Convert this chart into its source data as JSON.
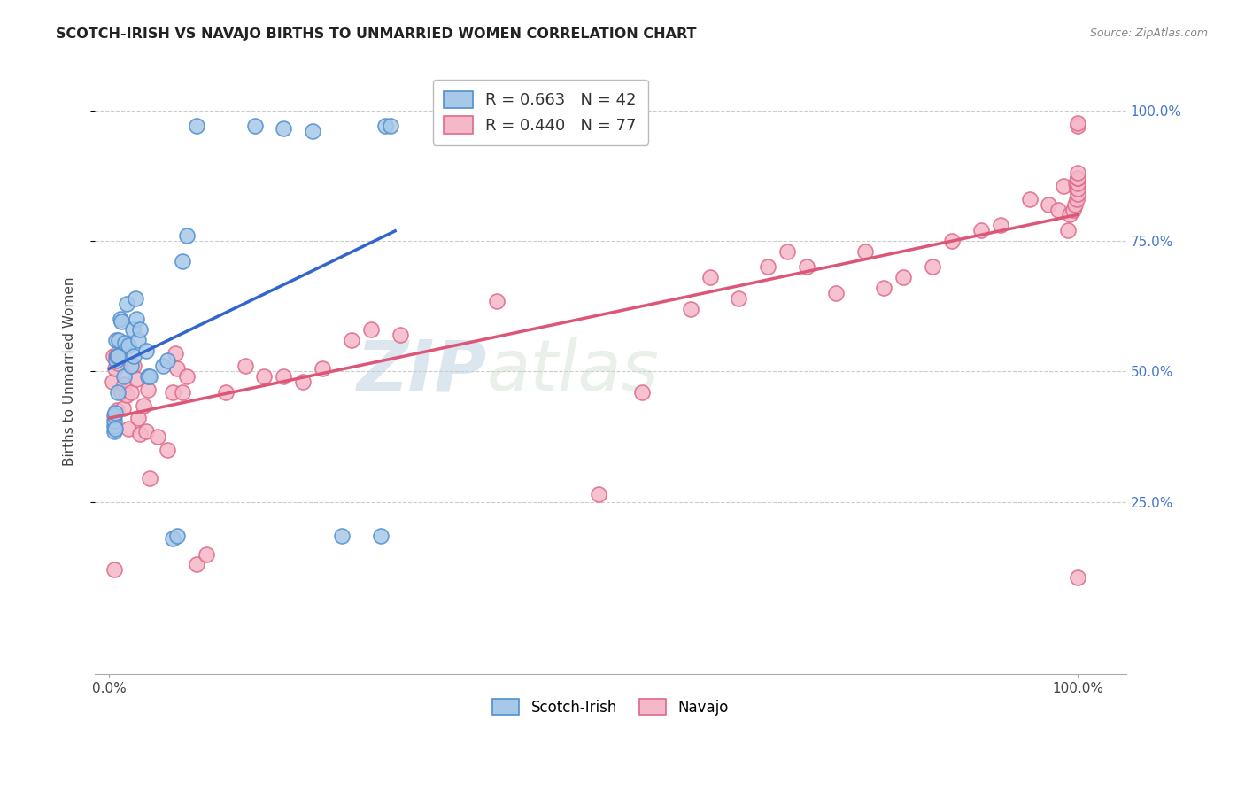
{
  "title": "SCOTCH-IRISH VS NAVAJO BIRTHS TO UNMARRIED WOMEN CORRELATION CHART",
  "source": "Source: ZipAtlas.com",
  "ylabel": "Births to Unmarried Women",
  "scotch_irish_R": 0.663,
  "scotch_irish_N": 42,
  "navajo_R": 0.44,
  "navajo_N": 77,
  "scotch_irish_color": "#a8c8e8",
  "navajo_color": "#f5b8c8",
  "scotch_irish_edge_color": "#5090d0",
  "navajo_edge_color": "#e06888",
  "scotch_irish_line_color": "#3366cc",
  "navajo_line_color": "#dd5577",
  "watermark_zip": "ZIP",
  "watermark_atlas": "atlas",
  "scotch_irish_x": [
    0.5,
    0.5,
    0.5,
    0.5,
    0.6,
    0.6,
    0.7,
    0.7,
    0.8,
    0.9,
    0.9,
    1.0,
    1.1,
    1.2,
    1.5,
    1.6,
    1.8,
    2.0,
    2.2,
    2.4,
    2.5,
    2.7,
    2.8,
    3.0,
    3.2,
    3.8,
    4.0,
    4.2,
    5.5,
    6.0,
    6.5,
    7.0,
    7.5,
    8.0,
    9.0,
    15.0,
    18.0,
    21.0,
    24.0,
    28.0,
    28.5,
    29.0
  ],
  "scotch_irish_y": [
    38.5,
    39.5,
    40.5,
    41.5,
    39.0,
    42.0,
    52.0,
    56.0,
    53.0,
    46.0,
    53.0,
    56.0,
    60.0,
    59.5,
    49.0,
    55.5,
    63.0,
    55.0,
    51.0,
    58.0,
    53.0,
    64.0,
    60.0,
    56.0,
    58.0,
    54.0,
    49.0,
    49.0,
    51.0,
    52.0,
    18.0,
    18.5,
    71.0,
    76.0,
    97.0,
    97.0,
    96.5,
    96.0,
    18.5,
    18.5,
    97.0,
    97.0
  ],
  "navajo_x": [
    0.3,
    0.4,
    0.5,
    0.6,
    0.7,
    0.8,
    0.9,
    1.0,
    1.2,
    1.4,
    1.5,
    1.8,
    2.0,
    2.2,
    2.5,
    2.8,
    3.0,
    3.2,
    3.5,
    3.8,
    4.0,
    4.2,
    5.0,
    6.0,
    6.5,
    6.8,
    7.0,
    7.5,
    8.0,
    9.0,
    10.0,
    12.0,
    14.0,
    16.0,
    18.0,
    20.0,
    22.0,
    25.0,
    27.0,
    30.0,
    40.0,
    50.5,
    55.0,
    60.0,
    62.0,
    65.0,
    68.0,
    70.0,
    72.0,
    75.0,
    78.0,
    80.0,
    82.0,
    85.0,
    87.0,
    90.0,
    92.0,
    95.0,
    97.0,
    98.0,
    98.5,
    99.0,
    99.2,
    99.5,
    99.7,
    99.8,
    99.9,
    99.9,
    100.0,
    100.0,
    100.0,
    100.0,
    100.0,
    100.0,
    100.0,
    100.0,
    100.0
  ],
  "navajo_y": [
    48.0,
    53.0,
    12.0,
    50.5,
    53.0,
    42.5,
    51.5,
    54.0,
    46.0,
    43.0,
    47.5,
    45.5,
    39.0,
    46.0,
    51.0,
    48.5,
    41.0,
    38.0,
    43.5,
    38.5,
    46.5,
    29.5,
    37.5,
    35.0,
    46.0,
    53.5,
    50.5,
    46.0,
    49.0,
    13.0,
    15.0,
    46.0,
    51.0,
    49.0,
    49.0,
    48.0,
    50.5,
    56.0,
    58.0,
    57.0,
    63.5,
    26.5,
    46.0,
    62.0,
    68.0,
    64.0,
    70.0,
    73.0,
    70.0,
    65.0,
    73.0,
    66.0,
    68.0,
    70.0,
    75.0,
    77.0,
    78.0,
    83.0,
    82.0,
    81.0,
    85.5,
    77.0,
    80.0,
    81.0,
    82.0,
    86.0,
    85.0,
    83.0,
    84.0,
    85.0,
    86.0,
    87.0,
    87.0,
    88.0,
    97.0,
    97.5,
    10.5
  ]
}
